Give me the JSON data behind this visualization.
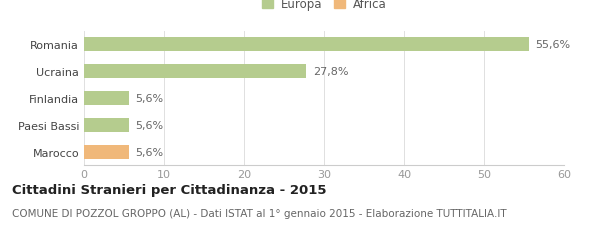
{
  "categories": [
    "Romania",
    "Ucraina",
    "Finlandia",
    "Paesi Bassi",
    "Marocco"
  ],
  "values": [
    55.6,
    27.8,
    5.6,
    5.6,
    5.6
  ],
  "labels": [
    "55,6%",
    "27,8%",
    "5,6%",
    "5,6%",
    "5,6%"
  ],
  "colors": [
    "#b5cc8e",
    "#b5cc8e",
    "#b5cc8e",
    "#b5cc8e",
    "#f0b87a"
  ],
  "legend_items": [
    {
      "label": "Europa",
      "color": "#b5cc8e"
    },
    {
      "label": "Africa",
      "color": "#f0b87a"
    }
  ],
  "xlim": [
    0,
    60
  ],
  "xticks": [
    0,
    10,
    20,
    30,
    40,
    50,
    60
  ],
  "title": "Cittadini Stranieri per Cittadinanza - 2015",
  "subtitle": "COMUNE DI POZZOL GROPPO (AL) - Dati ISTAT al 1° gennaio 2015 - Elaborazione TUTTITALIA.IT",
  "title_fontsize": 9.5,
  "subtitle_fontsize": 7.5,
  "background_color": "#ffffff",
  "bar_height": 0.52,
  "label_fontsize": 8,
  "tick_fontsize": 8,
  "ytick_fontsize": 8
}
